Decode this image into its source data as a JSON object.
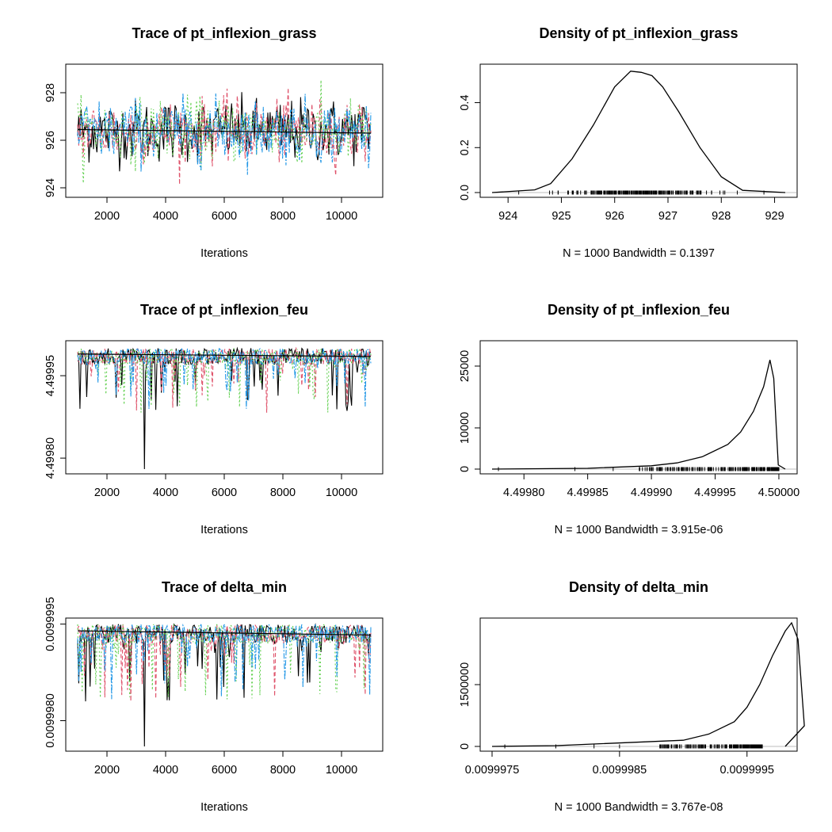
{
  "chart_data": [
    {
      "type": "line",
      "title": "Trace of pt_inflexion_grass",
      "xlabel": "Iterations",
      "ylabel": "",
      "xlim": [
        1000,
        11000
      ],
      "ylim": [
        923.8,
        929.0
      ],
      "x_ticks": [
        2000,
        4000,
        6000,
        8000,
        10000
      ],
      "y_ticks": [
        924,
        926,
        928
      ],
      "y_tick_labels": [
        "924",
        "926",
        "928"
      ],
      "trace": {
        "chains": 4,
        "center": 926.4,
        "sd": 0.65,
        "min": 924.1,
        "max": 928.8,
        "running_mean_end": 926.3
      },
      "series": [
        {
          "color": "#000000"
        },
        {
          "color": "#DF536B"
        },
        {
          "color": "#61D04F"
        },
        {
          "color": "#2297E6"
        }
      ]
    },
    {
      "type": "area",
      "title": "Density of pt_inflexion_grass",
      "subtitle": "N = 1000   Bandwidth = 0.1397",
      "xlim": [
        923.7,
        929.2
      ],
      "ylim": [
        0,
        0.55
      ],
      "x_ticks": [
        924,
        925,
        926,
        927,
        928,
        929
      ],
      "x_tick_labels": [
        "924",
        "925",
        "926",
        "927",
        "928",
        "929"
      ],
      "y_ticks": [
        0,
        0.2,
        0.4
      ],
      "y_tick_labels": [
        "0.0",
        "0.2",
        "0.4"
      ],
      "x": [
        923.7,
        924.5,
        924.8,
        925.2,
        925.6,
        926.0,
        926.3,
        926.5,
        926.7,
        926.9,
        927.2,
        927.6,
        928.0,
        928.4,
        929.2
      ],
      "y": [
        0.0,
        0.012,
        0.04,
        0.15,
        0.3,
        0.47,
        0.54,
        0.535,
        0.52,
        0.47,
        0.36,
        0.2,
        0.07,
        0.01,
        0.0
      ],
      "rug": {
        "min": 924.2,
        "max": 928.3,
        "center": 926.4,
        "sd": 0.7,
        "outliers": [
          928.8
        ]
      }
    },
    {
      "type": "line",
      "title": "Trace of pt_inflexion_feu",
      "xlabel": "Iterations",
      "ylabel": "",
      "xlim": [
        1000,
        11000
      ],
      "ylim": [
        4.49978,
        4.500005
      ],
      "x_ticks": [
        2000,
        4000,
        6000,
        8000,
        10000
      ],
      "y_ticks": [
        4.4998,
        4.49995
      ],
      "y_tick_labels": [
        "4.49980",
        "4.49995"
      ],
      "trace": {
        "chains": 4,
        "upper": 4.5,
        "band": 3e-05,
        "min": 4.49978,
        "running_mean_end": 4.499985
      },
      "series": [
        {
          "color": "#000000"
        },
        {
          "color": "#DF536B"
        },
        {
          "color": "#61D04F"
        },
        {
          "color": "#2297E6"
        }
      ]
    },
    {
      "type": "area",
      "title": "Density of pt_inflexion_feu",
      "subtitle": "N = 1000   Bandwidth = 3.915e-06",
      "xlim": [
        4.499775,
        4.500005
      ],
      "ylim": [
        0,
        30000
      ],
      "x_ticks": [
        4.4998,
        4.49985,
        4.4999,
        4.49995,
        4.5
      ],
      "x_tick_labels": [
        "4.49980",
        "4.49985",
        "4.49990",
        "4.49995",
        "4.50000"
      ],
      "y_ticks": [
        0,
        10000,
        25000
      ],
      "y_tick_labels": [
        "0",
        "10000",
        "25000"
      ],
      "x": [
        4.499775,
        4.49985,
        4.4999,
        4.49992,
        4.49994,
        4.49996,
        4.49997,
        4.49998,
        4.499988,
        4.499993,
        4.499996,
        4.499998,
        4.4999995,
        4.500005
      ],
      "y": [
        0,
        200,
        800,
        1500,
        3000,
        6000,
        9000,
        14000,
        20000,
        26500,
        22000,
        10000,
        1000,
        0
      ],
      "rug": {
        "min": 4.49989,
        "max": 4.5,
        "outliers": [
          4.49978,
          4.49984,
          4.49987
        ]
      }
    },
    {
      "type": "line",
      "title": "Trace of delta_min",
      "xlabel": "Iterations",
      "ylabel": "",
      "xlim": [
        1000,
        11000
      ],
      "ylim": [
        0.0099976,
        0.00999952
      ],
      "x_ticks": [
        2000,
        4000,
        6000,
        8000,
        10000
      ],
      "y_ticks": [
        0.009998,
        0.0099995
      ],
      "y_tick_labels": [
        "0.0099980",
        "0.0099995"
      ],
      "trace": {
        "chains": 4,
        "upper": 0.0099995,
        "band": 3e-07,
        "min": 0.0099976,
        "running_mean_end": 0.00999933
      },
      "series": [
        {
          "color": "#000000"
        },
        {
          "color": "#DF536B"
        },
        {
          "color": "#61D04F"
        },
        {
          "color": "#2297E6"
        }
      ]
    },
    {
      "type": "area",
      "title": "Density of delta_min",
      "subtitle": "N = 1000   Bandwidth = 3.767e-08",
      "xlim": [
        0.0099975,
        0.0099998
      ],
      "ylim": [
        0,
        3000000
      ],
      "x_ticks": [
        0.0099975,
        0.0099985,
        0.0099995
      ],
      "x_tick_labels": [
        "0.0099975",
        "0.0099985",
        "0.0099995"
      ],
      "y_ticks": [
        0,
        1500000
      ],
      "y_tick_labels": [
        "0",
        "1500000"
      ],
      "x": [
        0.0099975,
        0.009998,
        0.009999,
        0.0099992,
        0.0099994,
        0.0099995,
        0.0099996,
        0.0099997,
        0.0099998,
        0.00999985,
        0.0099999,
        0.00999995,
        0.0099998
      ],
      "y": [
        0,
        20000,
        150000,
        300000,
        600000,
        950000,
        1500000,
        2200000,
        2800000,
        3000000,
        2600000,
        500000,
        0
      ],
      "rug": {
        "min": 0.0099988,
        "max": 0.00999962,
        "outliers": [
          0.0099976,
          0.009998,
          0.0099983,
          0.0099985
        ]
      }
    }
  ]
}
